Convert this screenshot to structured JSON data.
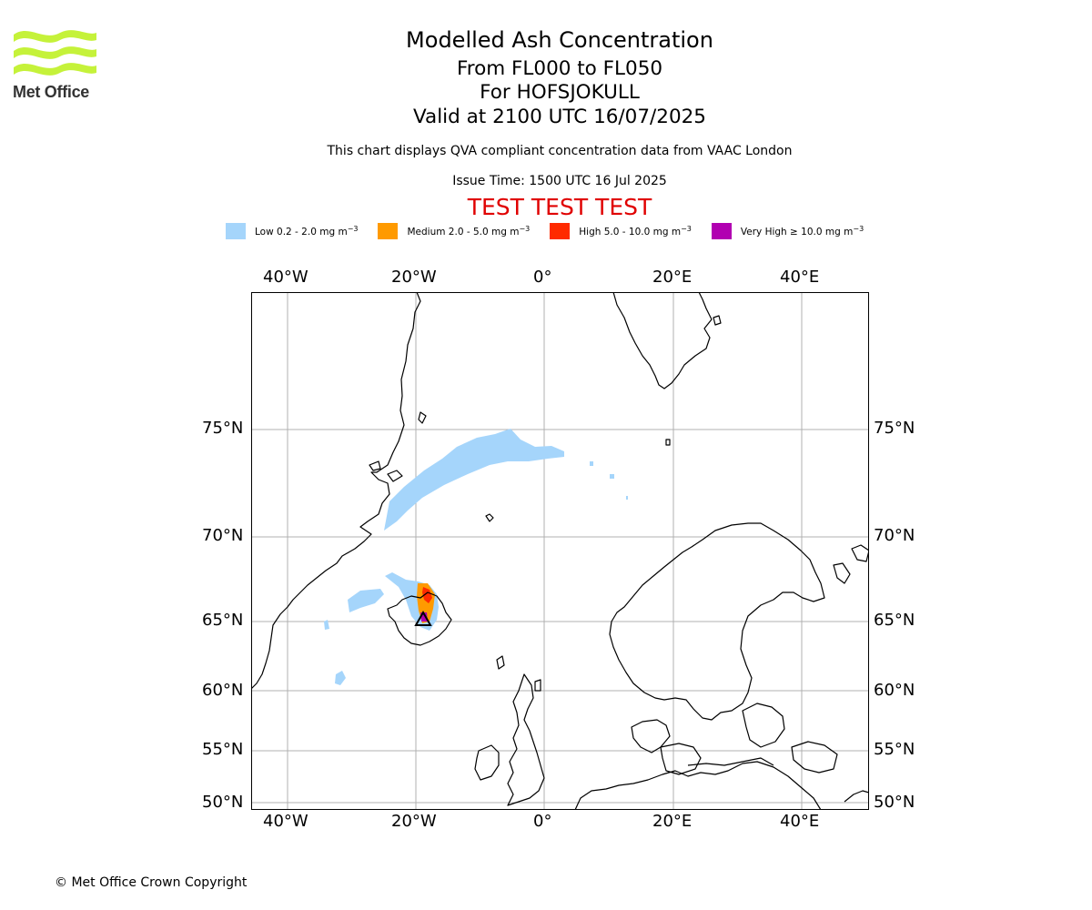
{
  "brand": {
    "name": "Met Office",
    "logo_color": "#c5f23a"
  },
  "header": {
    "title": "Modelled Ash Concentration",
    "flight_levels": "From FL000 to FL050",
    "volcano": "For HOFSJOKULL",
    "valid_time": "Valid at 2100 UTC 16/07/2025",
    "note": "This chart displays QVA compliant concentration data from VAAC London",
    "issue_time": "Issue Time: 1500 UTC 16 Jul 2025",
    "test_banner": "TEST TEST TEST"
  },
  "legend": [
    {
      "label": "Low 0.2 - 2.0 mg m",
      "unit_sup": "−3",
      "color": "#a5d5fb"
    },
    {
      "label": "Medium 2.0 - 5.0 mg m",
      "unit_sup": "−3",
      "color": "#ff9a00"
    },
    {
      "label": "High 5.0 - 10.0 mg m",
      "unit_sup": "−3",
      "color": "#ff2a00"
    },
    {
      "label": "Very High ≥ 10.0 mg m",
      "unit_sup": "−3",
      "color": "#b100b1"
    }
  ],
  "map": {
    "lon_labels": [
      "40°W",
      "20°W",
      "0°",
      "20°E",
      "40°E"
    ],
    "lat_labels": [
      "75°N",
      "70°N",
      "65°N",
      "60°N",
      "55°N",
      "50°N"
    ],
    "grid": true,
    "colors": {
      "land_outline": "#000000",
      "grid": "#b0b0b0"
    }
  },
  "footer": {
    "copyright": "© Met Office Crown Copyright"
  }
}
